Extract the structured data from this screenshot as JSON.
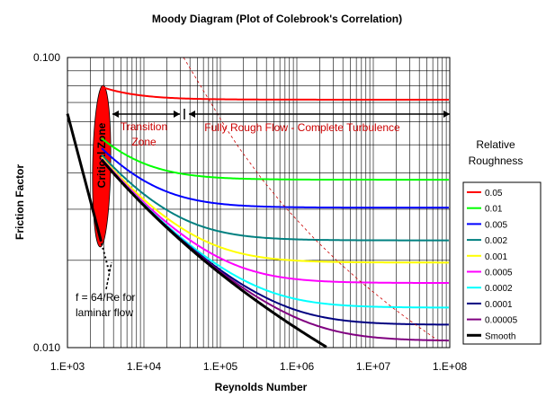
{
  "chart_data": {
    "type": "line",
    "title": "Moody Diagram (Plot of Colebrook's Correlation)",
    "xlabel": "Reynolds Number",
    "ylabel": "Friction Factor",
    "x_scale": "log",
    "y_scale": "log",
    "xlim": [
      1000,
      100000000
    ],
    "ylim": [
      0.01,
      0.1
    ],
    "x_ticks": [
      "1.E+03",
      "1.E+04",
      "1.E+05",
      "1.E+06",
      "1.E+07",
      "1.E+08"
    ],
    "y_ticks": [
      "0.010",
      "0.100"
    ],
    "grid": true,
    "legend_title": [
      "Relative",
      "Roughness"
    ],
    "legend_position": "right",
    "colors": {
      "critical_zone": "#ff0000",
      "annotation_text": "#cc0000",
      "complete_turbulence_line": "#cc0000"
    },
    "series": [
      {
        "name": "0.05",
        "color": "#ff0000",
        "roughness": 0.05
      },
      {
        "name": "0.01",
        "color": "#00ff00",
        "roughness": 0.01
      },
      {
        "name": "0.005",
        "color": "#0000ff",
        "roughness": 0.005
      },
      {
        "name": "0.002",
        "color": "#008080",
        "roughness": 0.002
      },
      {
        "name": "0.001",
        "color": "#ffff00",
        "roughness": 0.001
      },
      {
        "name": "0.0005",
        "color": "#ff00ff",
        "roughness": 0.0005
      },
      {
        "name": "0.0002",
        "color": "#00ffff",
        "roughness": 0.0002
      },
      {
        "name": "0.0001",
        "color": "#000080",
        "roughness": 0.0001
      },
      {
        "name": "0.00005",
        "color": "#800080",
        "roughness": 5e-05
      },
      {
        "name": "Smooth",
        "color": "#000000",
        "roughness": 0
      }
    ],
    "laminar": {
      "x_range": [
        1000,
        2800
      ],
      "formula": "f = 64/Re"
    },
    "annotations": {
      "critical_zone": "Critical Zone",
      "transition": [
        "Transition",
        "Zone"
      ],
      "fully_rough": "Fully Rough Flow - Complete Turbulence",
      "laminar": [
        "f = 64/Re for",
        "laminar flow"
      ]
    }
  }
}
